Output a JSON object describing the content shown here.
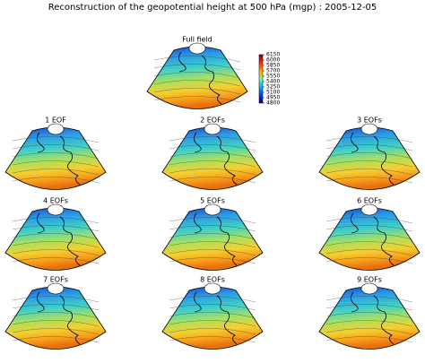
{
  "title": "Reconstruction of the geopotential height at 500 hPa (mgp) : 2005-12-05",
  "full_field": {
    "title": "Full field",
    "colorbar": {
      "lim": [
        4800,
        6150
      ],
      "ticks": [
        6150,
        6000,
        5850,
        5700,
        5550,
        5400,
        5250,
        5100,
        4950,
        4800
      ]
    }
  },
  "panels": [
    {
      "title": "1 EOF"
    },
    {
      "title": "2 EOFs"
    },
    {
      "title": "3 EOFs"
    },
    {
      "title": "4 EOFs"
    },
    {
      "title": "5 EOFs"
    },
    {
      "title": "6 EOFs"
    },
    {
      "title": "7 EOFs"
    },
    {
      "title": "8 EOFs"
    },
    {
      "title": "9 EOFs"
    }
  ]
}
